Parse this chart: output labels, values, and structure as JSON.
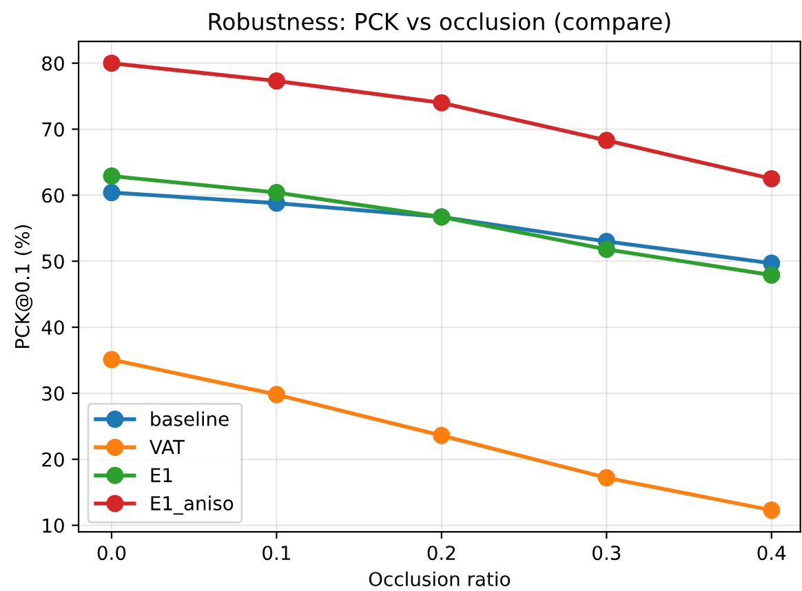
{
  "chart_data": {
    "type": "line",
    "title": "Robustness: PCK vs occlusion (compare)",
    "xlabel": "Occlusion ratio",
    "ylabel": "PCK@0.1 (%)",
    "x": [
      0.0,
      0.1,
      0.2,
      0.3,
      0.4
    ],
    "series": [
      {
        "name": "baseline",
        "color": "#1f77b4",
        "values": [
          60.4,
          58.8,
          56.7,
          53.0,
          49.7
        ]
      },
      {
        "name": "VAT",
        "color": "#ff7f0e",
        "values": [
          35.1,
          29.8,
          23.6,
          17.2,
          12.3
        ]
      },
      {
        "name": "E1",
        "color": "#2ca02c",
        "values": [
          62.9,
          60.4,
          56.7,
          51.8,
          47.9
        ]
      },
      {
        "name": "E1_aniso",
        "color": "#d62728",
        "values": [
          80.0,
          77.3,
          74.0,
          68.3,
          62.5
        ]
      }
    ],
    "xlim": [
      -0.02,
      0.4175
    ],
    "ylim": [
      9,
      83.3
    ],
    "xticks": [
      {
        "value": 0.0,
        "label": "0.0"
      },
      {
        "value": 0.1,
        "label": "0.1"
      },
      {
        "value": 0.2,
        "label": "0.2"
      },
      {
        "value": 0.3,
        "label": "0.3"
      },
      {
        "value": 0.4,
        "label": "0.4"
      }
    ],
    "yticks": [
      10,
      20,
      30,
      40,
      50,
      60,
      70,
      80
    ],
    "grid": true,
    "legend": "lower left",
    "marker": "circle",
    "line_style": "solid"
  }
}
